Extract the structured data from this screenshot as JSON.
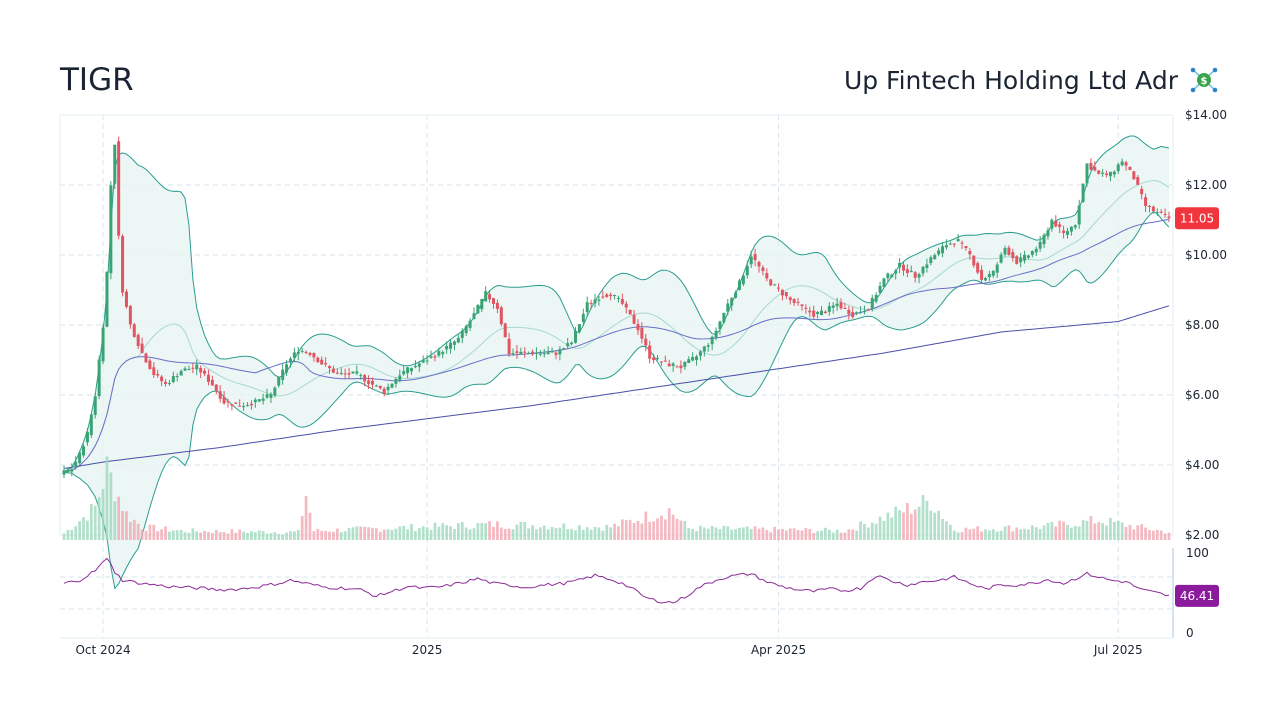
{
  "header": {
    "ticker": "TIGR",
    "company": "Up Fintech Holding Ltd Adr",
    "logo_icon": "dollar-network-icon"
  },
  "colors": {
    "up": "#3aa374",
    "down": "#e05561",
    "band_fill": "#e6f4f2",
    "band_line": "#2a9d8f",
    "sma_short": "#a9d8cf",
    "sma_mid": "#6a6ec8",
    "sma_long": "#4a4fa8",
    "rsi": "#8c2a98",
    "last_price_badge": "#f0363c",
    "rsi_badge": "#8c1a9c",
    "grid": "#d6e6ec"
  },
  "chart_data": {
    "type": "candlestick",
    "price_axis": {
      "ylim": [
        2,
        14
      ],
      "ticks": [
        "$14.00",
        "$12.00",
        "$10.00",
        "$8.00",
        "$6.00",
        "$4.00",
        "$2.00"
      ],
      "tick_values": [
        14,
        12,
        10,
        8,
        6,
        4,
        2
      ]
    },
    "rsi_axis": {
      "ylim": [
        0,
        100
      ],
      "ticks": [
        "100",
        "0"
      ],
      "tick_values": [
        100,
        0
      ],
      "guides": [
        70,
        30
      ]
    },
    "x_labels": [
      "Oct 2024",
      "2025",
      "Apr 2025",
      "Jul 2025"
    ],
    "x_label_days": [
      10,
      93,
      183,
      270
    ],
    "last_price": "11.05",
    "last_rsi": "46.41",
    "anchors": {
      "price": [
        [
          0,
          3.8
        ],
        [
          2,
          3.9
        ],
        [
          4,
          4.3
        ],
        [
          6,
          4.9
        ],
        [
          8,
          6.0
        ],
        [
          10,
          8.0
        ],
        [
          11,
          9.5
        ],
        [
          12,
          12.0
        ],
        [
          13,
          13.2
        ],
        [
          14,
          10.5
        ],
        [
          15,
          9.0
        ],
        [
          17,
          8.0
        ],
        [
          20,
          7.2
        ],
        [
          23,
          6.6
        ],
        [
          26,
          6.3
        ],
        [
          30,
          6.7
        ],
        [
          34,
          6.8
        ],
        [
          38,
          6.3
        ],
        [
          41,
          5.8
        ],
        [
          45,
          5.7
        ],
        [
          49,
          5.8
        ],
        [
          53,
          6.0
        ],
        [
          57,
          6.9
        ],
        [
          60,
          7.3
        ],
        [
          63,
          7.2
        ],
        [
          66,
          6.9
        ],
        [
          70,
          6.6
        ],
        [
          75,
          6.6
        ],
        [
          79,
          6.3
        ],
        [
          82,
          6.1
        ],
        [
          86,
          6.6
        ],
        [
          91,
          6.9
        ],
        [
          96,
          7.2
        ],
        [
          101,
          7.6
        ],
        [
          105,
          8.3
        ],
        [
          108,
          8.9
        ],
        [
          111,
          8.5
        ],
        [
          114,
          7.2
        ],
        [
          118,
          7.2
        ],
        [
          122,
          7.2
        ],
        [
          126,
          7.2
        ],
        [
          130,
          7.5
        ],
        [
          134,
          8.6
        ],
        [
          137,
          8.8
        ],
        [
          140,
          8.9
        ],
        [
          143,
          8.6
        ],
        [
          147,
          7.9
        ],
        [
          150,
          7.1
        ],
        [
          154,
          6.9
        ],
        [
          158,
          6.8
        ],
        [
          162,
          7.1
        ],
        [
          166,
          7.6
        ],
        [
          170,
          8.6
        ],
        [
          173,
          9.2
        ],
        [
          176,
          10.0
        ],
        [
          180,
          9.3
        ],
        [
          183,
          9.0
        ],
        [
          186,
          8.7
        ],
        [
          189,
          8.5
        ],
        [
          192,
          8.3
        ],
        [
          195,
          8.4
        ],
        [
          198,
          8.6
        ],
        [
          202,
          8.3
        ],
        [
          206,
          8.5
        ],
        [
          210,
          9.3
        ],
        [
          214,
          9.7
        ],
        [
          218,
          9.4
        ],
        [
          222,
          9.9
        ],
        [
          226,
          10.3
        ],
        [
          229,
          10.4
        ],
        [
          232,
          10.0
        ],
        [
          235,
          9.3
        ],
        [
          238,
          9.5
        ],
        [
          241,
          10.2
        ],
        [
          244,
          9.8
        ],
        [
          247,
          10.0
        ],
        [
          250,
          10.3
        ],
        [
          253,
          11.0
        ],
        [
          256,
          10.6
        ],
        [
          259,
          10.9
        ],
        [
          262,
          12.6
        ],
        [
          265,
          12.3
        ],
        [
          268,
          12.3
        ],
        [
          271,
          12.7
        ],
        [
          274,
          12.2
        ],
        [
          277,
          11.4
        ],
        [
          280,
          11.2
        ],
        [
          283,
          11.05
        ]
      ],
      "volume": [
        [
          0,
          0.05
        ],
        [
          8,
          0.25
        ],
        [
          11,
          0.55
        ],
        [
          13,
          0.4
        ],
        [
          16,
          0.2
        ],
        [
          20,
          0.1
        ],
        [
          30,
          0.07
        ],
        [
          60,
          0.06
        ],
        [
          62,
          0.35
        ],
        [
          64,
          0.07
        ],
        [
          110,
          0.12
        ],
        [
          140,
          0.1
        ],
        [
          155,
          0.23
        ],
        [
          160,
          0.09
        ],
        [
          200,
          0.07
        ],
        [
          222,
          0.3
        ],
        [
          228,
          0.08
        ],
        [
          250,
          0.1
        ],
        [
          265,
          0.15
        ],
        [
          283,
          0.06
        ]
      ],
      "rsi": [
        [
          0,
          62
        ],
        [
          4,
          66
        ],
        [
          8,
          78
        ],
        [
          10,
          88
        ],
        [
          11,
          92
        ],
        [
          12,
          88
        ],
        [
          13,
          76
        ],
        [
          15,
          66
        ],
        [
          20,
          62
        ],
        [
          27,
          58
        ],
        [
          35,
          56
        ],
        [
          40,
          54
        ],
        [
          45,
          55
        ],
        [
          50,
          58
        ],
        [
          55,
          62
        ],
        [
          58,
          66
        ],
        [
          62,
          62
        ],
        [
          67,
          57
        ],
        [
          72,
          56
        ],
        [
          76,
          54
        ],
        [
          80,
          46
        ],
        [
          84,
          52
        ],
        [
          88,
          58
        ],
        [
          92,
          56
        ],
        [
          97,
          58
        ],
        [
          102,
          63
        ],
        [
          106,
          68
        ],
        [
          110,
          62
        ],
        [
          114,
          60
        ],
        [
          118,
          57
        ],
        [
          123,
          60
        ],
        [
          128,
          62
        ],
        [
          132,
          66
        ],
        [
          136,
          72
        ],
        [
          140,
          67
        ],
        [
          143,
          62
        ],
        [
          146,
          54
        ],
        [
          149,
          44
        ],
        [
          152,
          40
        ],
        [
          156,
          38
        ],
        [
          159,
          45
        ],
        [
          163,
          58
        ],
        [
          168,
          68
        ],
        [
          172,
          72
        ],
        [
          176,
          74
        ],
        [
          180,
          64
        ],
        [
          184,
          58
        ],
        [
          188,
          54
        ],
        [
          192,
          52
        ],
        [
          196,
          55
        ],
        [
          200,
          53
        ],
        [
          204,
          56
        ],
        [
          208,
          72
        ],
        [
          212,
          65
        ],
        [
          216,
          60
        ],
        [
          220,
          64
        ],
        [
          224,
          66
        ],
        [
          228,
          70
        ],
        [
          232,
          62
        ],
        [
          236,
          55
        ],
        [
          240,
          60
        ],
        [
          244,
          60
        ],
        [
          248,
          62
        ],
        [
          252,
          67
        ],
        [
          256,
          62
        ],
        [
          260,
          70
        ],
        [
          262,
          74
        ],
        [
          265,
          70
        ],
        [
          268,
          66
        ],
        [
          272,
          64
        ],
        [
          276,
          54
        ],
        [
          280,
          50
        ],
        [
          283,
          46.41
        ]
      ]
    },
    "sma_long": [
      [
        0,
        3.9
      ],
      [
        11,
        4.1
      ],
      [
        40,
        4.5
      ],
      [
        70,
        5.0
      ],
      [
        120,
        5.7
      ],
      [
        150,
        6.2
      ],
      [
        180,
        6.7
      ],
      [
        210,
        7.2
      ],
      [
        240,
        7.8
      ],
      [
        270,
        8.1
      ],
      [
        283,
        8.55
      ]
    ]
  }
}
